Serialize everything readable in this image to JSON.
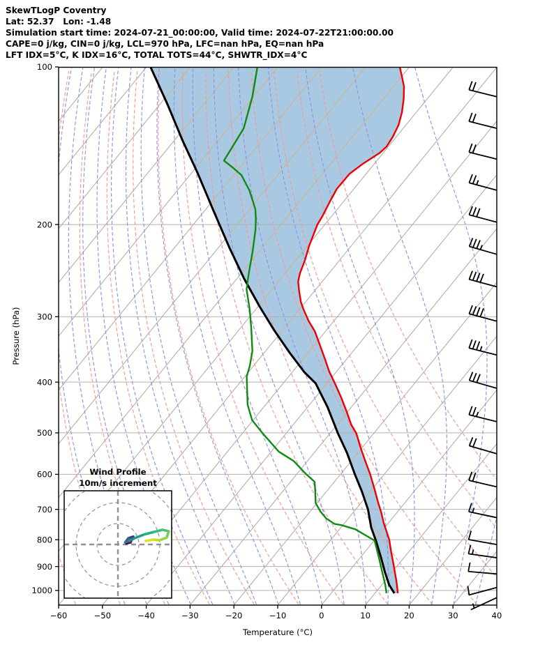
{
  "header": {
    "lines": [
      "SkewTLogP Coventry",
      "Lat: 52.37   Lon: -1.48",
      "Simulation start time: 2024-07-21_00:00:00, Valid time: 2024-07-22T21:00:00.00",
      "CAPE=0 j/kg, CIN=0 j/kg, LCL=970 hPa, LFC=nan hPa, EQ=nan hPa",
      "LFT IDX=5°C, K IDX=16°C, TOTAL TOTS=44°C, SHWTR_IDX=4°C"
    ]
  },
  "axes": {
    "x_label": "Temperature (°C)",
    "y_label": "Pressure (hPa)",
    "x_tick_labels": [
      "−60",
      "−50",
      "−40",
      "−30",
      "−20",
      "−10",
      "0",
      "10",
      "20",
      "30",
      "40"
    ],
    "x_tick_values": [
      -60,
      -50,
      -40,
      -30,
      -20,
      -10,
      0,
      10,
      20,
      30,
      40
    ],
    "y_tick_values": [
      100,
      200,
      300,
      400,
      500,
      600,
      700,
      800,
      900,
      1000
    ]
  },
  "inset": {
    "title": "Wind Profile",
    "subtitle": "10m/s increment",
    "rings_ms": [
      10,
      20,
      30
    ]
  },
  "chart_data": {
    "type": "line",
    "variant": "skewt-logp-sounding",
    "title": "SkewTLogP Coventry",
    "xlabel": "Temperature (°C)",
    "ylabel": "Pressure (hPa)",
    "x_range_c": [
      -60,
      40
    ],
    "pressure_range_hpa": [
      100,
      1063
    ],
    "isotherm_step_c": 10,
    "dry_adiabat_theta_c": [
      -60,
      60,
      10
    ],
    "moist_adiabat_t0_c": [
      -45,
      40,
      5
    ],
    "series": [
      {
        "name": "temperature",
        "color": "#ee0000",
        "points": [
          [
            1012,
            15.2
          ],
          [
            961,
            12.7
          ],
          [
            887,
            8.6
          ],
          [
            844,
            6.0
          ],
          [
            800,
            3.3
          ],
          [
            776,
            1.5
          ],
          [
            743,
            -1.1
          ],
          [
            707,
            -3.8
          ],
          [
            680,
            -6.1
          ],
          [
            640,
            -9.5
          ],
          [
            600,
            -13.2
          ],
          [
            567,
            -16.7
          ],
          [
            535,
            -20.2
          ],
          [
            501,
            -24.0
          ],
          [
            482,
            -26.8
          ],
          [
            455,
            -30.3
          ],
          [
            428,
            -34.1
          ],
          [
            402,
            -38.2
          ],
          [
            381,
            -41.8
          ],
          [
            360,
            -45.2
          ],
          [
            341,
            -48.5
          ],
          [
            320,
            -52.4
          ],
          [
            306,
            -55.7
          ],
          [
            290,
            -59.2
          ],
          [
            281,
            -61.1
          ],
          [
            268,
            -63.5
          ],
          [
            257,
            -65.5
          ],
          [
            248,
            -66.6
          ],
          [
            235,
            -67.8
          ],
          [
            219,
            -69.7
          ],
          [
            214,
            -70.2
          ],
          [
            200,
            -71.7
          ],
          [
            193,
            -72.1
          ],
          [
            181,
            -73.1
          ],
          [
            171,
            -73.9
          ],
          [
            160,
            -73.8
          ],
          [
            153,
            -72.6
          ],
          [
            146,
            -70.8
          ],
          [
            142,
            -70.4
          ],
          [
            136,
            -70.8
          ],
          [
            129,
            -71.7
          ],
          [
            122,
            -73.3
          ],
          [
            115,
            -75.4
          ],
          [
            109,
            -77.6
          ],
          [
            104,
            -80.1
          ],
          [
            100,
            -82.2
          ]
        ]
      },
      {
        "name": "dewpoint",
        "color": "#128a12",
        "points": [
          [
            1012,
            12.6
          ],
          [
            976,
            10.8
          ],
          [
            922,
            7.7
          ],
          [
            866,
            4.3
          ],
          [
            803,
            0.1
          ],
          [
            764,
            -6.4
          ],
          [
            750,
            -10.4
          ],
          [
            746,
            -12.2
          ],
          [
            728,
            -15.1
          ],
          [
            707,
            -17.6
          ],
          [
            681,
            -20.3
          ],
          [
            642,
            -22.9
          ],
          [
            620,
            -24.5
          ],
          [
            598,
            -28.1
          ],
          [
            566,
            -33.1
          ],
          [
            543,
            -38.3
          ],
          [
            502,
            -45.2
          ],
          [
            473,
            -50.2
          ],
          [
            442,
            -54.1
          ],
          [
            390,
            -59.6
          ],
          [
            373,
            -60.8
          ],
          [
            349,
            -63.0
          ],
          [
            315,
            -67.6
          ],
          [
            291,
            -71.3
          ],
          [
            266,
            -75.8
          ],
          [
            250,
            -78.0
          ],
          [
            225,
            -81.5
          ],
          [
            205,
            -84.8
          ],
          [
            196,
            -86.6
          ],
          [
            187,
            -88.7
          ],
          [
            172,
            -93.6
          ],
          [
            161,
            -98.2
          ],
          [
            156,
            -101.4
          ],
          [
            151,
            -104.9
          ],
          [
            131,
            -106.4
          ],
          [
            114,
            -110.3
          ],
          [
            100,
            -114.7
          ]
        ]
      },
      {
        "name": "parcel",
        "color": "#000000",
        "points": [
          [
            1012,
            14.4
          ],
          [
            976,
            11.7
          ],
          [
            922,
            8.3
          ],
          [
            866,
            4.8
          ],
          [
            803,
            0.4
          ],
          [
            758,
            -3.1
          ],
          [
            700,
            -7.2
          ],
          [
            646,
            -12.0
          ],
          [
            600,
            -16.7
          ],
          [
            546,
            -22.5
          ],
          [
            501,
            -28.2
          ],
          [
            446,
            -35.5
          ],
          [
            402,
            -42.6
          ],
          [
            383,
            -47.2
          ],
          [
            351,
            -54.3
          ],
          [
            318,
            -62.0
          ],
          [
            287,
            -69.6
          ],
          [
            254,
            -78.3
          ],
          [
            221,
            -87.6
          ],
          [
            187,
            -98.4
          ],
          [
            160,
            -108.4
          ],
          [
            138,
            -118.2
          ],
          [
            118,
            -128.2
          ],
          [
            100,
            -139.1
          ]
        ]
      }
    ],
    "shade_between": [
      "parcel",
      "temperature"
    ],
    "wind_barbs": [
      {
        "p": 114,
        "full": 2,
        "half": 0,
        "ang": 14
      },
      {
        "p": 131,
        "full": 2,
        "half": 0,
        "ang": 14
      },
      {
        "p": 150,
        "full": 2,
        "half": 0,
        "ang": 14
      },
      {
        "p": 172,
        "full": 2,
        "half": 1,
        "ang": 15
      },
      {
        "p": 198,
        "full": 3,
        "half": 0,
        "ang": 15
      },
      {
        "p": 228,
        "full": 3,
        "half": 1,
        "ang": 16
      },
      {
        "p": 263,
        "full": 4,
        "half": 0,
        "ang": 15
      },
      {
        "p": 306,
        "full": 4,
        "half": 0,
        "ang": 15
      },
      {
        "p": 355,
        "full": 3,
        "half": 1,
        "ang": 14
      },
      {
        "p": 411,
        "full": 3,
        "half": 0,
        "ang": 16
      },
      {
        "p": 476,
        "full": 2,
        "half": 1,
        "ang": 14
      },
      {
        "p": 548,
        "full": 2,
        "half": 0,
        "ang": 16
      },
      {
        "p": 634,
        "full": 2,
        "half": 0,
        "ang": 13
      },
      {
        "p": 726,
        "full": 1,
        "half": 1,
        "ang": 12
      },
      {
        "p": 817,
        "full": 1,
        "half": 0,
        "ang": 10
      },
      {
        "p": 866,
        "full": 1,
        "half": 1,
        "ang": 8
      },
      {
        "p": 930,
        "full": 1,
        "half": 0,
        "ang": 5
      },
      {
        "p": 987,
        "full": 1,
        "half": 0,
        "ang": -15
      },
      {
        "p": 1032,
        "full": 0,
        "half": 1,
        "ang": -25
      }
    ],
    "hodograph_trace_ms": [
      [
        4.0,
        0.5
      ],
      [
        6.0,
        1.0
      ],
      [
        7.3,
        3.7
      ],
      [
        5.0,
        3.0
      ],
      [
        3.5,
        1.0
      ],
      [
        5.3,
        1.7
      ],
      [
        8.0,
        3.0
      ],
      [
        12.3,
        4.7
      ],
      [
        17.3,
        6.0
      ],
      [
        21.3,
        7.0
      ],
      [
        24.3,
        6.3
      ],
      [
        23.3,
        3.3
      ],
      [
        20.0,
        2.0
      ],
      [
        16.7,
        2.3
      ],
      [
        13.3,
        1.7
      ]
    ],
    "hodograph_palette": [
      "#450457",
      "#46246a",
      "#433d80",
      "#3d5a8a",
      "#35708e",
      "#2d868e",
      "#269b8f",
      "#21af85",
      "#2fc07c",
      "#4ac16d",
      "#6ccd5a",
      "#93d741",
      "#b8de2a",
      "#dbe319",
      "#fde725"
    ],
    "colors": {
      "shade": "#a9c8e1",
      "isotherm": "#a8a8a8",
      "isotherm_in_shade": "#d0b28e",
      "pressure_grid": "#b0b0b0",
      "dry_adiabat": "#f29898",
      "moist_adiabat": "#8d92e8",
      "temperature": "#ee0000",
      "dewpoint": "#128a12",
      "parcel": "#000000",
      "barb": "#000000",
      "hodo_grid": "#909090"
    },
    "legend": null,
    "grid": true
  }
}
